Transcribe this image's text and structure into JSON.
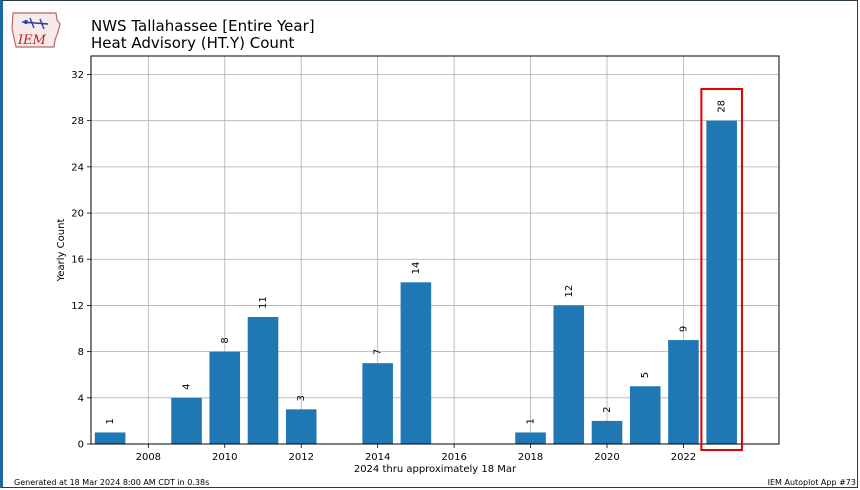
{
  "header": {
    "logo_text": "IEM",
    "title": "NWS Tallahassee [Entire Year]",
    "subtitle": "Heat Advisory (HT.Y) Count"
  },
  "footer": {
    "generated": "Generated at 18 Mar 2024 8:00 AM CDT in 0.38s",
    "app": "IEM Autoplot App #73"
  },
  "colors": {
    "bar": "#1f77b4",
    "grid": "#b0b0b0",
    "highlight_box": "#e00000"
  },
  "chart_data": {
    "type": "bar",
    "title": "NWS Tallahassee [Entire Year]",
    "subtitle": "Heat Advisory (HT.Y) Count",
    "xlabel": "2024 thru approximately 18 Mar",
    "ylabel": "Yearly Count",
    "x": [
      2007,
      2009,
      2010,
      2011,
      2012,
      2014,
      2015,
      2018,
      2019,
      2020,
      2021,
      2022,
      2023
    ],
    "values": [
      1,
      4,
      8,
      11,
      3,
      7,
      14,
      1,
      12,
      2,
      5,
      9,
      28
    ],
    "xlim": [
      2006.5,
      2024.5
    ],
    "ylim": [
      0,
      33.6
    ],
    "xticks": [
      2008,
      2010,
      2012,
      2014,
      2016,
      2018,
      2020,
      2022
    ],
    "yticks": [
      0,
      4,
      8,
      12,
      16,
      20,
      24,
      28,
      32
    ],
    "grid": true,
    "highlight": 2023
  }
}
